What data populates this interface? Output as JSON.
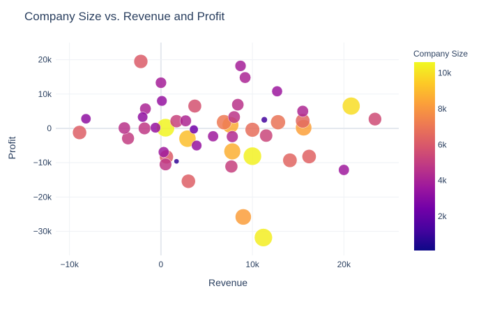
{
  "chart_data": {
    "type": "scatter",
    "title": "Company Size vs. Revenue and Profit",
    "xlabel": "Revenue",
    "ylabel": "Profit",
    "xlim": [
      -11500,
      26000
    ],
    "ylim": [
      -37000,
      25000
    ],
    "xticks": [
      -10000,
      0,
      10000,
      20000
    ],
    "xtick_labels": [
      "−10k",
      "0",
      "10k",
      "20k"
    ],
    "yticks": [
      -30000,
      -20000,
      -10000,
      0,
      10000,
      20000
    ],
    "ytick_labels": [
      "−30k",
      "−20k",
      "−10k",
      "0",
      "10k",
      "20k"
    ],
    "grid": true,
    "colorbar": {
      "title": "Company Size",
      "range": [
        100,
        10600
      ],
      "ticks": [
        2000,
        4000,
        6000,
        8000,
        10000
      ],
      "tick_labels": [
        "2k",
        "4k",
        "6k",
        "8k",
        "10k"
      ],
      "colorscale": [
        "#0d0887",
        "#46039f",
        "#7201a8",
        "#9c179e",
        "#bd3786",
        "#d8576b",
        "#ed7953",
        "#fb9f3a",
        "#fdca26",
        "#f0f921"
      ]
    },
    "points": [
      {
        "x": -2200,
        "y": 19500,
        "size": 6100
      },
      {
        "x": 8700,
        "y": 18200,
        "size": 3900
      },
      {
        "x": 9200,
        "y": 14800,
        "size": 4100
      },
      {
        "x": 12700,
        "y": 10800,
        "size": 3600
      },
      {
        "x": 0,
        "y": 13300,
        "size": 3900
      },
      {
        "x": 100,
        "y": 8000,
        "size": 3400
      },
      {
        "x": -1700,
        "y": 5700,
        "size": 4100
      },
      {
        "x": 3700,
        "y": 6500,
        "size": 5700
      },
      {
        "x": 8400,
        "y": 6900,
        "size": 4600
      },
      {
        "x": 15500,
        "y": 5000,
        "size": 4200
      },
      {
        "x": 20800,
        "y": 6500,
        "size": 9900
      },
      {
        "x": 23400,
        "y": 2700,
        "size": 5500
      },
      {
        "x": -8200,
        "y": 2800,
        "size": 3200
      },
      {
        "x": -2000,
        "y": 3300,
        "size": 3300
      },
      {
        "x": 1700,
        "y": 2100,
        "size": 5200
      },
      {
        "x": 2700,
        "y": 2200,
        "size": 4200
      },
      {
        "x": 8000,
        "y": 3300,
        "size": 4700
      },
      {
        "x": 11300,
        "y": 2500,
        "size": 1200
      },
      {
        "x": 12800,
        "y": 1800,
        "size": 6900
      },
      {
        "x": 15500,
        "y": 2200,
        "size": 6500
      },
      {
        "x": -8900,
        "y": -1200,
        "size": 6200
      },
      {
        "x": -4000,
        "y": 100,
        "size": 4600
      },
      {
        "x": -1800,
        "y": 0,
        "size": 4800
      },
      {
        "x": -600,
        "y": 200,
        "size": 3400
      },
      {
        "x": 500,
        "y": 200,
        "size": 10500
      },
      {
        "x": 3600,
        "y": -300,
        "size": 2400
      },
      {
        "x": 6900,
        "y": 1800,
        "size": 7100
      },
      {
        "x": 7600,
        "y": 1000,
        "size": 8600
      },
      {
        "x": 10000,
        "y": -400,
        "size": 6700
      },
      {
        "x": 15600,
        "y": 200,
        "size": 8300
      },
      {
        "x": -3600,
        "y": -2900,
        "size": 5000
      },
      {
        "x": 2900,
        "y": -3000,
        "size": 9100
      },
      {
        "x": 3900,
        "y": -5000,
        "size": 3400
      },
      {
        "x": 5700,
        "y": -2300,
        "size": 3700
      },
      {
        "x": 7800,
        "y": -2400,
        "size": 4300
      },
      {
        "x": 11500,
        "y": -2100,
        "size": 5300
      },
      {
        "x": 7800,
        "y": -6700,
        "size": 8700
      },
      {
        "x": 10000,
        "y": -8100,
        "size": 10400
      },
      {
        "x": 300,
        "y": -6900,
        "size": 3700
      },
      {
        "x": 600,
        "y": -8300,
        "size": 6100
      },
      {
        "x": 1700,
        "y": -9600,
        "size": 800
      },
      {
        "x": 500,
        "y": -10500,
        "size": 4800
      },
      {
        "x": 7700,
        "y": -11100,
        "size": 5100
      },
      {
        "x": 14100,
        "y": -9300,
        "size": 6400
      },
      {
        "x": 16200,
        "y": -8200,
        "size": 6300
      },
      {
        "x": 20000,
        "y": -12100,
        "size": 3700
      },
      {
        "x": 3000,
        "y": -15400,
        "size": 6200
      },
      {
        "x": 9000,
        "y": -25800,
        "size": 8200
      },
      {
        "x": 11200,
        "y": -31800,
        "size": 10300
      }
    ]
  }
}
